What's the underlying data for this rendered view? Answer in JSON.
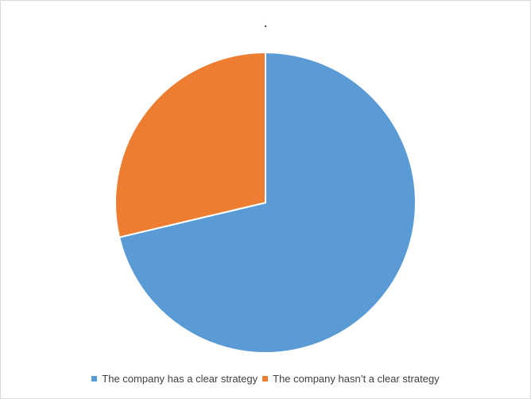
{
  "chart_data": {
    "type": "pie",
    "title": ".",
    "categories": [
      "The company has a clear strategy",
      "The company hasn’t a clear strategy"
    ],
    "values": [
      71.3,
      28.7
    ],
    "colors": [
      "#5b9bd5",
      "#ed7d31"
    ],
    "legend_position": "bottom",
    "start_angle": "12 o'clock",
    "direction": "clockwise"
  }
}
